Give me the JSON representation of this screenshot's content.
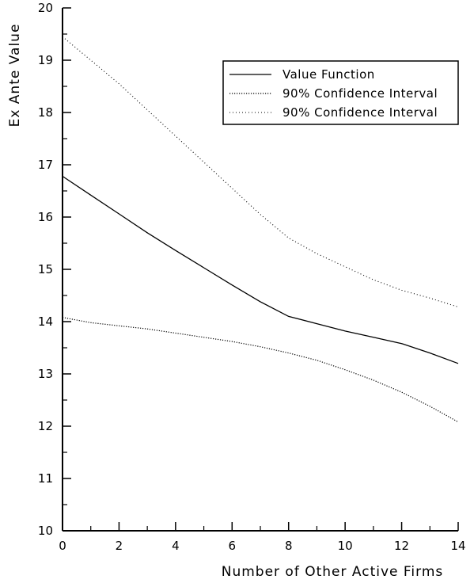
{
  "chart_data": {
    "type": "line",
    "title": "",
    "xlabel": "Number of Other Active Firms",
    "ylabel": "Ex Ante Value",
    "xlim": [
      0,
      14
    ],
    "ylim": [
      10,
      20
    ],
    "xticks": [
      0,
      2,
      4,
      6,
      8,
      10,
      12,
      14
    ],
    "yticks": [
      10,
      11,
      12,
      13,
      14,
      15,
      16,
      17,
      18,
      19,
      20
    ],
    "x": [
      0,
      1,
      2,
      3,
      4,
      5,
      6,
      7,
      8,
      9,
      10,
      11,
      12,
      13,
      14
    ],
    "legend_position": "top-right",
    "grid": false,
    "series": [
      {
        "name": "Value Function",
        "style": "solid",
        "color": "#000000",
        "values": [
          16.78,
          16.42,
          16.06,
          15.7,
          15.36,
          15.03,
          14.7,
          14.38,
          14.1,
          13.96,
          13.82,
          13.7,
          13.58,
          13.4,
          13.2
        ]
      },
      {
        "name": "90% Confidence Interval",
        "style": "dotted-dense",
        "color": "#000000",
        "values": [
          14.08,
          13.98,
          13.92,
          13.86,
          13.78,
          13.7,
          13.62,
          13.52,
          13.4,
          13.26,
          13.08,
          12.88,
          12.65,
          12.38,
          12.08
        ]
      },
      {
        "name": "90% Confidence Interval",
        "style": "dotted-sparse",
        "color": "#000000",
        "values": [
          19.45,
          19.0,
          18.55,
          18.05,
          17.55,
          17.05,
          16.55,
          16.05,
          15.6,
          15.3,
          15.05,
          14.8,
          14.6,
          14.45,
          14.28
        ]
      }
    ]
  }
}
